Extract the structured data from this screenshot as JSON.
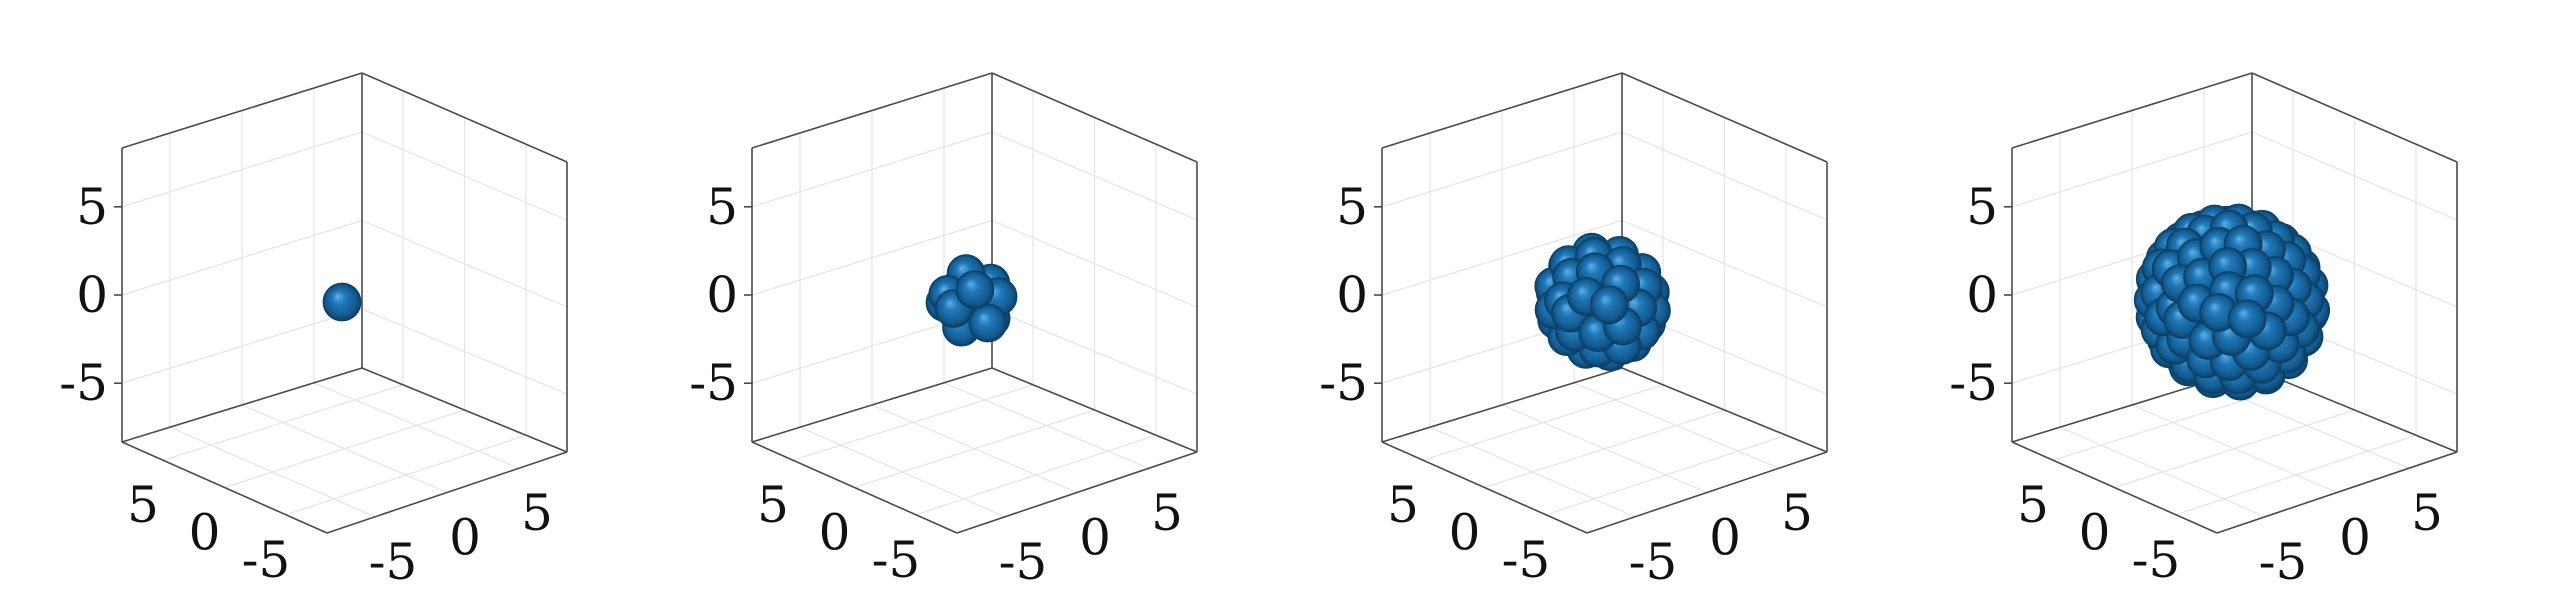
{
  "chart_data": [
    {
      "type": "scatter",
      "subtype": "3d-spheres",
      "panel": 1,
      "sphere_count": 1,
      "cluster_radius": 0,
      "xlim": [
        -8,
        8
      ],
      "ylim": [
        -8,
        8
      ],
      "zlim": [
        -8,
        8
      ],
      "x_ticks": [
        "5",
        "0",
        "-5"
      ],
      "y_ticks": [
        "-5",
        "0",
        "5"
      ],
      "z_ticks": [
        "5",
        "0",
        "-5"
      ],
      "grid": true,
      "color": "#1f6fa6"
    },
    {
      "type": "scatter",
      "subtype": "3d-spheres",
      "panel": 2,
      "sphere_count": 13,
      "cluster_radius": 2,
      "xlim": [
        -8,
        8
      ],
      "ylim": [
        -8,
        8
      ],
      "zlim": [
        -8,
        8
      ],
      "x_ticks": [
        "5",
        "0",
        "-5"
      ],
      "y_ticks": [
        "-5",
        "0",
        "5"
      ],
      "z_ticks": [
        "5",
        "0",
        "-5"
      ],
      "grid": true,
      "color": "#1f6fa6"
    },
    {
      "type": "scatter",
      "subtype": "3d-spheres",
      "panel": 3,
      "sphere_count": 55,
      "cluster_radius": 3.5,
      "xlim": [
        -8,
        8
      ],
      "ylim": [
        -8,
        8
      ],
      "zlim": [
        -8,
        8
      ],
      "x_ticks": [
        "5",
        "0",
        "-5"
      ],
      "y_ticks": [
        "-5",
        "0",
        "5"
      ],
      "z_ticks": [
        "5",
        "0",
        "-5"
      ],
      "grid": true,
      "color": "#1f6fa6"
    },
    {
      "type": "scatter",
      "subtype": "3d-spheres",
      "panel": 4,
      "sphere_count": 250,
      "cluster_radius": 5.5,
      "xlim": [
        -8,
        8
      ],
      "ylim": [
        -8,
        8
      ],
      "zlim": [
        -8,
        8
      ],
      "x_ticks": [
        "5",
        "0",
        "-5"
      ],
      "y_ticks": [
        "-5",
        "0",
        "5"
      ],
      "z_ticks": [
        "5",
        "0",
        "-5"
      ],
      "grid": true,
      "color": "#1f6fa6"
    }
  ]
}
